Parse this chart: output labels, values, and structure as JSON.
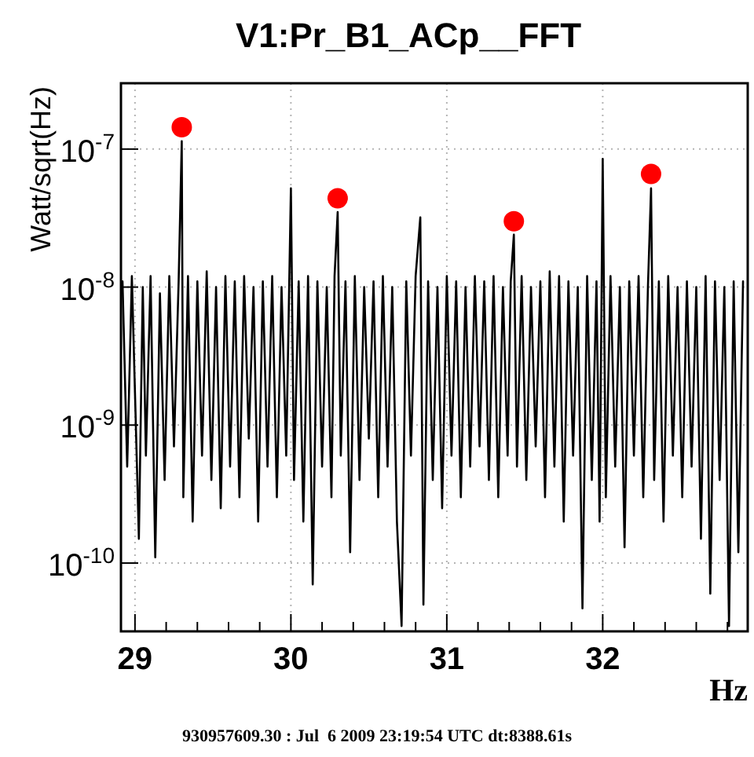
{
  "chart_data": {
    "type": "line",
    "title": "V1:Pr_B1_ACp__FFT",
    "xlabel": "Hz",
    "ylabel": "Watt/sqrt(Hz)",
    "annotations": [
      "930957609.30 : Jul  6 2009 23:19:54 UTC dt:8388.61s"
    ],
    "log": "y",
    "grid": true,
    "legend": false,
    "xlim": [
      28.91,
      32.93
    ],
    "xticks": [
      29,
      {
        "value": 29.2,
        "label": null
      },
      {
        "value": 29.4,
        "label": null
      },
      {
        "value": 29.6,
        "label": null
      },
      {
        "value": 29.8,
        "label": null
      },
      30,
      {
        "value": 30.2,
        "label": null
      },
      {
        "value": 30.4,
        "label": null
      },
      {
        "value": 30.6,
        "label": null
      },
      {
        "value": 30.8,
        "label": null
      },
      31,
      {
        "value": 31.2,
        "label": null
      },
      {
        "value": 31.4,
        "label": null
      },
      {
        "value": 31.6,
        "label": null
      },
      {
        "value": 31.8,
        "label": null
      },
      32,
      {
        "value": 32.2,
        "label": null
      },
      {
        "value": 32.4,
        "label": null
      },
      {
        "value": 32.6,
        "label": null
      },
      {
        "value": 32.8,
        "label": null
      }
    ],
    "ylim": [
      3.2e-11,
      3e-07
    ],
    "yticks": [
      {
        "value": 1e-10,
        "label": "10$^{-10}$"
      },
      {
        "value": 1e-09,
        "label": "10$^{-9}$"
      },
      {
        "value": 1e-08,
        "label": "10$^{-8}$"
      },
      {
        "value": 1e-07,
        "label": "10$^{-7}$"
      }
    ],
    "series": [
      {
        "color": "#000000",
        "marker": "none",
        "x": [
          28.92,
          28.95,
          28.98,
          29.025,
          29.05,
          29.07,
          29.1,
          29.13,
          29.16,
          29.19,
          29.22,
          29.25,
          29.28,
          29.3,
          29.31,
          29.34,
          29.37,
          29.4,
          29.43,
          29.46,
          29.49,
          29.52,
          29.55,
          29.58,
          29.61,
          29.64,
          29.67,
          29.7,
          29.73,
          29.76,
          29.79,
          29.82,
          29.85,
          29.88,
          29.91,
          29.94,
          29.97,
          30.0,
          30.02,
          30.05,
          30.08,
          30.11,
          30.14,
          30.17,
          30.2,
          30.23,
          30.26,
          30.28,
          30.3,
          30.32,
          30.35,
          30.38,
          30.41,
          30.44,
          30.47,
          30.5,
          30.53,
          30.56,
          30.59,
          30.62,
          30.65,
          30.68,
          30.71,
          30.74,
          30.77,
          30.8,
          30.83,
          30.85,
          30.88,
          30.91,
          30.94,
          30.97,
          31.0,
          31.03,
          31.06,
          31.09,
          31.12,
          31.15,
          31.18,
          31.21,
          31.24,
          31.27,
          31.3,
          31.33,
          31.36,
          31.39,
          31.41,
          31.43,
          31.45,
          31.48,
          31.51,
          31.54,
          31.57,
          31.6,
          31.63,
          31.66,
          31.69,
          31.72,
          31.75,
          31.78,
          31.81,
          31.84,
          31.87,
          31.9,
          31.93,
          31.96,
          31.98,
          32.0,
          32.02,
          32.05,
          32.08,
          32.11,
          32.14,
          32.17,
          32.2,
          32.23,
          32.26,
          32.29,
          32.31,
          32.33,
          32.36,
          32.39,
          32.42,
          32.45,
          32.48,
          32.51,
          32.54,
          32.57,
          32.6,
          32.63,
          32.66,
          32.69,
          32.72,
          32.75,
          32.78,
          32.81,
          32.84,
          32.87,
          32.9
        ],
        "values": [
          1.1e-08,
          5e-10,
          1.2e-08,
          1.5e-10,
          1e-08,
          6e-10,
          1.2e-08,
          1.1e-10,
          9e-09,
          4e-10,
          1.2e-08,
          7e-10,
          1.1e-08,
          1.14e-07,
          3e-10,
          1.2e-08,
          2e-10,
          1.1e-08,
          6e-10,
          1.3e-08,
          4e-10,
          1e-08,
          2.5e-10,
          1.2e-08,
          5e-10,
          1.1e-08,
          3e-10,
          1.2e-08,
          8e-10,
          1e-08,
          2e-10,
          1.1e-08,
          5e-10,
          1.2e-08,
          3e-10,
          1e-08,
          6e-10,
          5.2e-08,
          4e-10,
          1.1e-08,
          2e-10,
          1.2e-08,
          7e-11,
          1.1e-08,
          5e-10,
          1e-08,
          3e-10,
          1.2e-08,
          3.5e-08,
          6e-10,
          1.1e-08,
          1.2e-10,
          1.2e-08,
          4e-10,
          1e-08,
          8e-10,
          1.1e-08,
          3e-10,
          1.2e-08,
          5e-10,
          1e-08,
          2e-10,
          3.5e-11,
          1.1e-08,
          6e-10,
          1.2e-08,
          3.2e-08,
          5e-11,
          1.1e-08,
          4e-10,
          1e-08,
          2.5e-10,
          1.2e-08,
          6e-10,
          1.1e-08,
          3e-10,
          1e-08,
          5e-10,
          1.2e-08,
          7e-10,
          1.1e-08,
          4e-10,
          1.2e-08,
          3e-10,
          1e-08,
          6e-10,
          1.1e-08,
          2.4e-08,
          5e-10,
          1.2e-08,
          4e-10,
          1e-08,
          7e-10,
          1.1e-08,
          3e-10,
          1.3e-08,
          5e-10,
          1.2e-08,
          2e-10,
          1.1e-08,
          6e-10,
          1e-08,
          4.7e-11,
          1.2e-08,
          4e-10,
          1.1e-08,
          2e-10,
          8.5e-08,
          3e-10,
          1.2e-08,
          5e-10,
          1e-08,
          1.3e-10,
          1.1e-08,
          6e-10,
          1.2e-08,
          3e-10,
          1e-08,
          5.2e-08,
          4e-10,
          1.1e-08,
          2e-10,
          1.2e-08,
          6e-10,
          1e-08,
          3e-10,
          1.1e-08,
          5e-10,
          1e-08,
          1.5e-10,
          1.2e-08,
          6e-11,
          1.1e-08,
          4e-10,
          1e-08,
          3.5e-11,
          1.1e-08,
          1.2e-10,
          1.1e-08
        ]
      },
      {
        "type": "scatter",
        "color": "#ff0000",
        "marker": "circle",
        "x": [
          29.3,
          30.3,
          31.43,
          32.31
        ],
        "values": [
          1.44e-07,
          4.4e-08,
          3e-08,
          6.6e-08
        ]
      }
    ]
  }
}
